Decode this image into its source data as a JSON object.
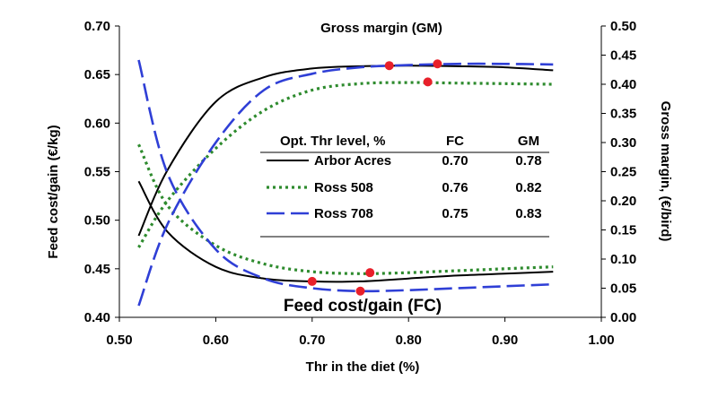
{
  "chart_data": {
    "type": "line",
    "xlabel": "Thr in the diet (%)",
    "ylabel_left": "Feed cost/gain (€/kg)",
    "ylabel_right": "Gross margin, (€/bird)",
    "xlim": [
      0.5,
      1.0
    ],
    "ylim_left": [
      0.4,
      0.7
    ],
    "ylim_right": [
      0.0,
      0.5
    ],
    "x_ticks": [
      "0.50",
      "0.60",
      "0.70",
      "0.80",
      "0.90",
      "1.00"
    ],
    "y_ticks_left": [
      "0.40",
      "0.45",
      "0.50",
      "0.55",
      "0.60",
      "0.65",
      "0.70"
    ],
    "y_ticks_right": [
      "0.00",
      "0.05",
      "0.10",
      "0.15",
      "0.20",
      "0.25",
      "0.30",
      "0.35",
      "0.40",
      "0.45",
      "0.50"
    ],
    "grid": false,
    "annotations": {
      "gm": "Gross margin (GM)",
      "fc": "Feed cost/gain (FC)"
    },
    "table": {
      "header": [
        "Opt. Thr level, %",
        "FC",
        "GM"
      ],
      "rows": [
        {
          "name": "Arbor Acres",
          "fc": "0.70",
          "gm": "0.78"
        },
        {
          "name": "Ross 508",
          "fc": "0.76",
          "gm": "0.82"
        },
        {
          "name": "Ross 708",
          "fc": "0.75",
          "gm": "0.83"
        }
      ]
    },
    "series": [
      {
        "name": "Arbor Acres",
        "color": "#000000",
        "style": "solid",
        "fc": {
          "x": [
            0.52,
            0.55,
            0.6,
            0.65,
            0.7,
            0.75,
            0.8,
            0.85,
            0.9,
            0.95
          ],
          "y": [
            0.54,
            0.488,
            0.452,
            0.44,
            0.437,
            0.437,
            0.44,
            0.443,
            0.445,
            0.447
          ]
        },
        "gm": {
          "x": [
            0.52,
            0.55,
            0.6,
            0.65,
            0.7,
            0.75,
            0.8,
            0.85,
            0.9,
            0.95
          ],
          "y": [
            0.14,
            0.253,
            0.37,
            0.412,
            0.427,
            0.431,
            0.432,
            0.431,
            0.429,
            0.424
          ]
        },
        "opt_fc": [
          0.7,
          0.437
        ],
        "opt_gm": [
          0.78,
          0.432
        ]
      },
      {
        "name": "Ross 508",
        "color": "#2e8b2e",
        "style": "dotted",
        "fc": {
          "x": [
            0.52,
            0.55,
            0.6,
            0.65,
            0.7,
            0.75,
            0.8,
            0.85,
            0.9,
            0.95
          ],
          "y": [
            0.578,
            0.515,
            0.474,
            0.455,
            0.447,
            0.445,
            0.446,
            0.448,
            0.45,
            0.452
          ]
        },
        "gm": {
          "x": [
            0.52,
            0.55,
            0.6,
            0.65,
            0.7,
            0.75,
            0.8,
            0.85,
            0.9,
            0.95
          ],
          "y": [
            0.12,
            0.2,
            0.29,
            0.355,
            0.39,
            0.401,
            0.403,
            0.402,
            0.401,
            0.4
          ]
        },
        "opt_fc": [
          0.76,
          0.446
        ],
        "opt_gm": [
          0.82,
          0.404
        ]
      },
      {
        "name": "Ross 708",
        "color": "#2f3fd6",
        "style": "dashed",
        "fc": {
          "x": [
            0.52,
            0.55,
            0.6,
            0.65,
            0.7,
            0.75,
            0.8,
            0.85,
            0.9,
            0.95
          ],
          "y": [
            0.665,
            0.548,
            0.47,
            0.44,
            0.43,
            0.427,
            0.428,
            0.43,
            0.432,
            0.434
          ]
        },
        "gm": {
          "x": [
            0.52,
            0.55,
            0.6,
            0.65,
            0.7,
            0.75,
            0.8,
            0.85,
            0.9,
            0.95
          ],
          "y": [
            0.02,
            0.16,
            0.3,
            0.39,
            0.418,
            0.429,
            0.433,
            0.435,
            0.435,
            0.434
          ]
        },
        "opt_fc": [
          0.75,
          0.427
        ],
        "opt_gm": [
          0.83,
          0.435
        ]
      }
    ]
  }
}
